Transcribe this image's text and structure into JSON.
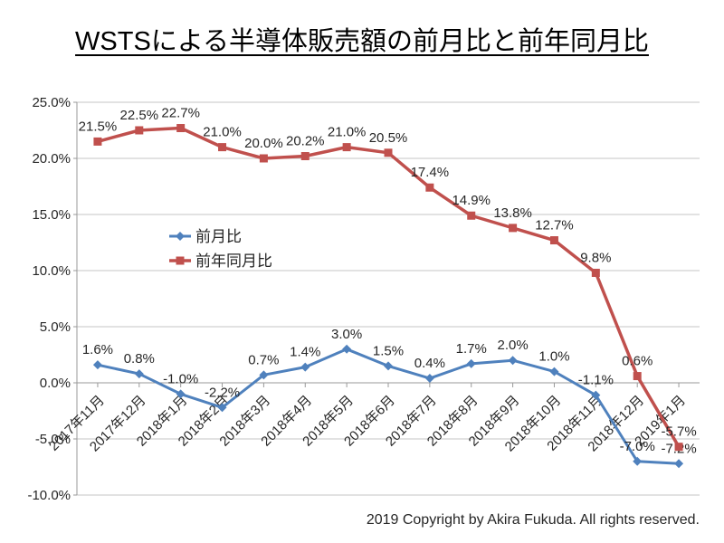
{
  "footer": {
    "copyright": "2019 Copyright by Akira Fukuda. All rights reserved."
  },
  "chart_data": {
    "type": "line",
    "title": "WSTSによる半導体販売額の前月比と前年同月比",
    "categories": [
      "2017年11月",
      "2017年12月",
      "2018年1月",
      "2018年2月",
      "2018年3月",
      "2018年4月",
      "2018年5月",
      "2018年6月",
      "2018年7月",
      "2018年8月",
      "2018年9月",
      "2018年10月",
      "2018年11月",
      "2018年12月",
      "2019年1月"
    ],
    "series": [
      {
        "name": "前月比",
        "color": "#4F81BD",
        "marker": "diamond",
        "line_width": 3,
        "values": [
          1.6,
          0.8,
          -1.0,
          -2.2,
          0.7,
          1.4,
          3.0,
          1.5,
          0.4,
          1.7,
          2.0,
          1.0,
          -1.1,
          -7.0,
          -7.2
        ]
      },
      {
        "name": "前年同月比",
        "color": "#C0504D",
        "marker": "square",
        "line_width": 3.5,
        "values": [
          21.5,
          22.5,
          22.7,
          21.0,
          20.0,
          20.2,
          21.0,
          20.5,
          17.4,
          14.9,
          13.8,
          12.7,
          9.8,
          0.6,
          -5.7
        ]
      }
    ],
    "ylim": [
      -10,
      25
    ],
    "yticks": [
      25,
      20,
      15,
      10,
      5,
      0,
      -5,
      -10
    ],
    "ytick_format": "0.0%",
    "data_label_format": "0.0%",
    "xlabel": "",
    "ylabel": "",
    "grid": true,
    "x_label_rotation": -45,
    "legend_position": "inside-left-middle",
    "data_labels": true,
    "colors": {
      "grid": "#c6c6c6",
      "axis": "#999999",
      "label_text": "#262626"
    }
  }
}
